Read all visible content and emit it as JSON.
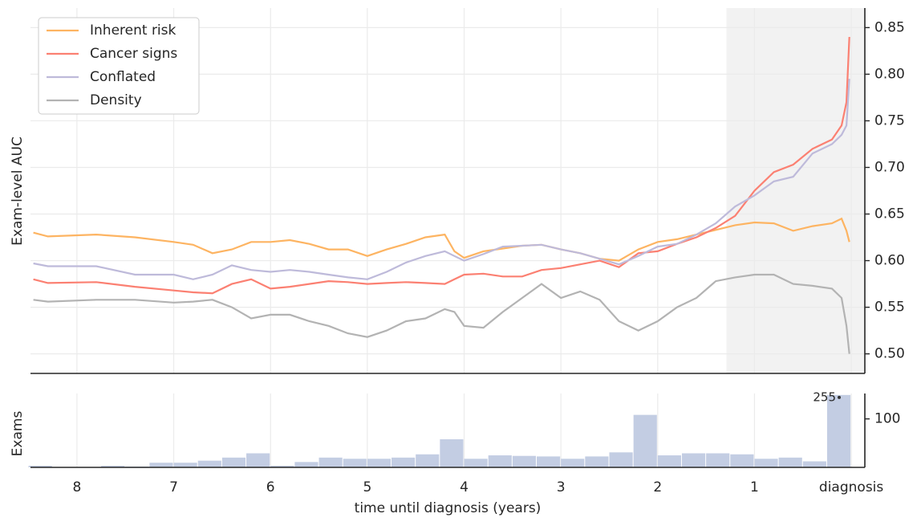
{
  "chart_data": [
    {
      "type": "line",
      "ylabel": "Exam-level AUC",
      "x": [
        8.45,
        8.3,
        7.8,
        7.4,
        7.0,
        6.8,
        6.6,
        6.4,
        6.2,
        6.0,
        5.8,
        5.6,
        5.4,
        5.2,
        5.0,
        4.8,
        4.6,
        4.4,
        4.2,
        4.1,
        4.0,
        3.8,
        3.6,
        3.4,
        3.2,
        3.0,
        2.8,
        2.6,
        2.4,
        2.2,
        2.0,
        1.8,
        1.6,
        1.4,
        1.2,
        1.0,
        0.8,
        0.6,
        0.4,
        0.2,
        0.1,
        0.05,
        0.02
      ],
      "series": [
        {
          "name": "Inherent risk",
          "color": "#fdb462",
          "values": [
            0.63,
            0.626,
            0.628,
            0.625,
            0.62,
            0.617,
            0.608,
            0.612,
            0.62,
            0.62,
            0.622,
            0.618,
            0.612,
            0.612,
            0.605,
            0.612,
            0.618,
            0.625,
            0.628,
            0.61,
            0.603,
            0.61,
            0.613,
            0.616,
            0.617,
            0.612,
            0.608,
            0.602,
            0.6,
            0.612,
            0.62,
            0.623,
            0.628,
            0.633,
            0.638,
            0.641,
            0.64,
            0.632,
            0.637,
            0.64,
            0.645,
            0.632,
            0.62
          ]
        },
        {
          "name": "Cancer signs",
          "color": "#fb8072",
          "values": [
            0.58,
            0.576,
            0.577,
            0.572,
            0.568,
            0.566,
            0.565,
            0.575,
            0.58,
            0.57,
            0.572,
            0.575,
            0.578,
            0.577,
            0.575,
            0.576,
            0.577,
            0.576,
            0.575,
            0.58,
            0.585,
            0.586,
            0.583,
            0.583,
            0.59,
            0.592,
            0.596,
            0.6,
            0.593,
            0.608,
            0.61,
            0.618,
            0.625,
            0.635,
            0.648,
            0.675,
            0.695,
            0.703,
            0.72,
            0.73,
            0.745,
            0.77,
            0.84
          ]
        },
        {
          "name": "Conflated",
          "color": "#bebada",
          "values": [
            0.597,
            0.594,
            0.594,
            0.585,
            0.585,
            0.58,
            0.585,
            0.595,
            0.59,
            0.588,
            0.59,
            0.588,
            0.585,
            0.582,
            0.58,
            0.588,
            0.598,
            0.605,
            0.61,
            0.605,
            0.6,
            0.607,
            0.615,
            0.616,
            0.617,
            0.612,
            0.608,
            0.602,
            0.596,
            0.605,
            0.615,
            0.618,
            0.628,
            0.64,
            0.658,
            0.67,
            0.685,
            0.69,
            0.715,
            0.725,
            0.735,
            0.745,
            0.795
          ]
        },
        {
          "name": "Density",
          "color": "#b3b3b3",
          "values": [
            0.558,
            0.556,
            0.558,
            0.558,
            0.555,
            0.556,
            0.558,
            0.55,
            0.538,
            0.542,
            0.542,
            0.535,
            0.53,
            0.522,
            0.518,
            0.525,
            0.535,
            0.538,
            0.548,
            0.545,
            0.53,
            0.528,
            0.545,
            0.56,
            0.575,
            0.56,
            0.567,
            0.558,
            0.535,
            0.525,
            0.535,
            0.55,
            0.56,
            0.578,
            0.582,
            0.585,
            0.585,
            0.575,
            0.573,
            0.57,
            0.56,
            0.53,
            0.5
          ]
        }
      ],
      "ylim": [
        0.479,
        0.871
      ],
      "yticks": [
        {
          "value": 0.5,
          "label": "0.50"
        },
        0.55,
        {
          "value": 0.6,
          "label": "0.60"
        },
        0.65,
        {
          "value": 0.7,
          "label": "0.70"
        },
        0.75,
        {
          "value": 0.8,
          "label": "0.80"
        },
        0.85
      ],
      "shade_from": 1.29,
      "shade_color": "#f2f2f2",
      "grid": true,
      "legend": "upper left"
    },
    {
      "type": "histogram",
      "ylabel": "Exams",
      "xlabel": "time until diagnosis (years)",
      "color": "#c3cde3",
      "bins": [
        8.5,
        8.25,
        8.0,
        7.75,
        7.5,
        7.25,
        7.0,
        6.75,
        6.5,
        6.25,
        6.0,
        5.75,
        5.5,
        5.25,
        5.0,
        4.75,
        4.5,
        4.25,
        4.0,
        3.75,
        3.5,
        3.25,
        3.0,
        2.75,
        2.5,
        2.25,
        2.0,
        1.75,
        1.5,
        1.25,
        1.0,
        0.75,
        0.5,
        0.25,
        0
      ],
      "values": [
        16,
        15,
        15,
        16,
        15.5,
        18,
        18,
        19.5,
        22,
        26,
        16,
        18.5,
        22,
        21,
        21,
        22,
        25,
        45,
        21,
        24,
        23.5,
        23,
        21,
        23,
        27,
        117,
        24,
        26,
        26,
        25,
        21,
        22,
        19,
        255
      ],
      "xlim": [
        8.48,
        -0.14
      ],
      "xticks": [
        8,
        7,
        6,
        5,
        4,
        3,
        2,
        1,
        {
          "value": 0,
          "label": "diagnosis"
        }
      ],
      "ylim": [
        15,
        270
      ],
      "log": true,
      "yticks": [
        100
      ],
      "grid": true
    }
  ]
}
